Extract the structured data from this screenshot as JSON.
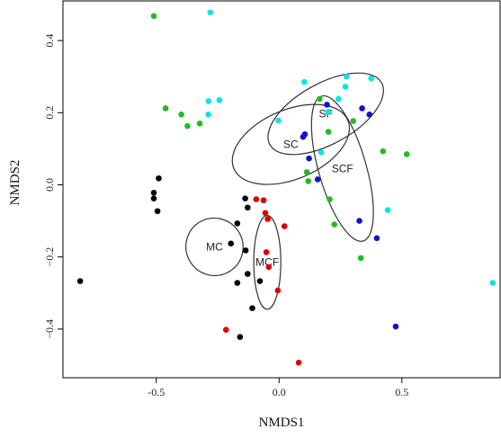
{
  "chart_data": {
    "type": "scatter",
    "xlabel": "NMDS1",
    "ylabel": "NMDS2",
    "xlim": [
      -0.88,
      0.9
    ],
    "ylim": [
      -0.535,
      0.51
    ],
    "x_ticks": [
      -0.5,
      0.0,
      0.5
    ],
    "y_ticks": [
      -0.4,
      -0.2,
      0.0,
      0.2,
      0.4
    ],
    "x_tick_labels": [
      "-0.5",
      "0.0",
      "0.5"
    ],
    "y_tick_labels": [
      "−0.4",
      "−0.2",
      "0.0",
      "0.2",
      "0.4"
    ],
    "grid": false,
    "series": [
      {
        "color": "#000000",
        "points": [
          [
            -0.81,
            -0.267
          ],
          [
            -0.49,
            0.018
          ],
          [
            -0.51,
            -0.022
          ],
          [
            -0.51,
            -0.038
          ],
          [
            -0.495,
            -0.073
          ],
          [
            -0.138,
            -0.038
          ],
          [
            -0.128,
            -0.063
          ],
          [
            -0.17,
            -0.107
          ],
          [
            -0.196,
            -0.163
          ],
          [
            -0.136,
            -0.182
          ],
          [
            -0.128,
            -0.247
          ],
          [
            -0.17,
            -0.272
          ],
          [
            -0.078,
            -0.267
          ],
          [
            -0.109,
            -0.342
          ],
          [
            -0.159,
            -0.422
          ]
        ]
      },
      {
        "color": "#dd0000",
        "points": [
          [
            -0.093,
            -0.04
          ],
          [
            -0.063,
            -0.043
          ],
          [
            -0.056,
            -0.078
          ],
          [
            -0.046,
            -0.095
          ],
          [
            0.022,
            -0.115
          ],
          [
            -0.052,
            -0.187
          ],
          [
            -0.042,
            -0.228
          ],
          [
            -0.005,
            -0.293
          ],
          [
            -0.216,
            -0.402
          ],
          [
            0.08,
            -0.493
          ]
        ]
      },
      {
        "color": "#22bb22",
        "points": [
          [
            -0.51,
            0.468
          ],
          [
            -0.462,
            0.212
          ],
          [
            -0.398,
            0.195
          ],
          [
            -0.373,
            0.163
          ],
          [
            -0.323,
            0.17
          ],
          [
            0.165,
            0.238
          ],
          [
            0.302,
            0.177
          ],
          [
            0.201,
            0.147
          ],
          [
            0.113,
            0.035
          ],
          [
            0.119,
            0.01
          ],
          [
            0.206,
            -0.04
          ],
          [
            0.225,
            -0.11
          ],
          [
            0.423,
            0.093
          ],
          [
            0.52,
            0.085
          ],
          [
            0.333,
            -0.203
          ]
        ]
      },
      {
        "color": "#1111cc",
        "points": [
          [
            0.195,
            0.222
          ],
          [
            0.338,
            0.212
          ],
          [
            0.368,
            0.195
          ],
          [
            0.098,
            0.133
          ],
          [
            0.105,
            0.14
          ],
          [
            0.122,
            0.073
          ],
          [
            0.157,
            0.015
          ],
          [
            0.327,
            -0.1
          ],
          [
            0.398,
            -0.148
          ],
          [
            0.475,
            -0.393
          ]
        ]
      },
      {
        "color": "#00e6e6",
        "points": [
          [
            -0.28,
            0.478
          ],
          [
            -0.287,
            0.232
          ],
          [
            -0.243,
            0.235
          ],
          [
            -0.288,
            0.195
          ],
          [
            0.275,
            0.3
          ],
          [
            0.27,
            0.272
          ],
          [
            0.375,
            0.295
          ],
          [
            0.242,
            0.238
          ],
          [
            0.2,
            0.202
          ],
          [
            0.103,
            0.285
          ],
          [
            -0.003,
            0.178
          ],
          [
            0.172,
            0.09
          ],
          [
            0.443,
            -0.07
          ],
          [
            0.87,
            -0.272
          ]
        ]
      }
    ],
    "ellipses": [
      {
        "label": "SF",
        "cx": 0.19,
        "cy": 0.197,
        "rx": 0.26,
        "ry": 0.084,
        "rotation_deg": -29
      },
      {
        "label": "SC",
        "cx": 0.048,
        "cy": 0.112,
        "rx": 0.252,
        "ry": 0.096,
        "rotation_deg": -23
      },
      {
        "label": "SCF",
        "cx": 0.258,
        "cy": 0.045,
        "rx": 0.097,
        "ry": 0.209,
        "rotation_deg": -16
      },
      {
        "label": "MC",
        "cx": -0.263,
        "cy": -0.172,
        "rx": 0.116,
        "ry": 0.08,
        "rotation_deg": -33
      },
      {
        "label": "MCF",
        "cx": -0.048,
        "cy": -0.215,
        "rx": 0.055,
        "ry": 0.13,
        "rotation_deg": 0
      }
    ]
  }
}
